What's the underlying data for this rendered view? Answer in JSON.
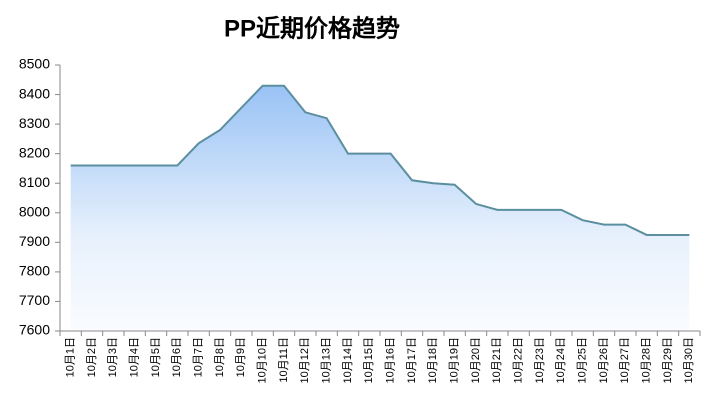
{
  "chart_data": {
    "type": "area",
    "title": "PP近期价格趋势",
    "categories": [
      "10月1日",
      "10月2日",
      "10月3日",
      "10月4日",
      "10月5日",
      "10月6日",
      "10月7日",
      "10月8日",
      "10月9日",
      "10月10日",
      "10月11日",
      "10月12日",
      "10月13日",
      "10月14日",
      "10月15日",
      "10月16日",
      "10月17日",
      "10月18日",
      "10月19日",
      "10月20日",
      "10月21日",
      "10月22日",
      "10月23日",
      "10月24日",
      "10月25日",
      "10月26日",
      "10月27日",
      "10月28日",
      "10月29日",
      "10月30日"
    ],
    "values": [
      8160,
      8160,
      8160,
      8160,
      8160,
      8160,
      8235,
      8280,
      8355,
      8430,
      8430,
      8340,
      8320,
      8200,
      8200,
      8200,
      8110,
      8100,
      8095,
      8030,
      8010,
      8010,
      8010,
      8010,
      7975,
      7960,
      7960,
      7925,
      7925,
      7925
    ],
    "color": "#5b8fa0",
    "ylim": [
      7600,
      8500
    ],
    "yticks": [
      7600,
      7700,
      7800,
      7900,
      8000,
      8100,
      8200,
      8300,
      8400,
      8500
    ],
    "grid": false
  }
}
